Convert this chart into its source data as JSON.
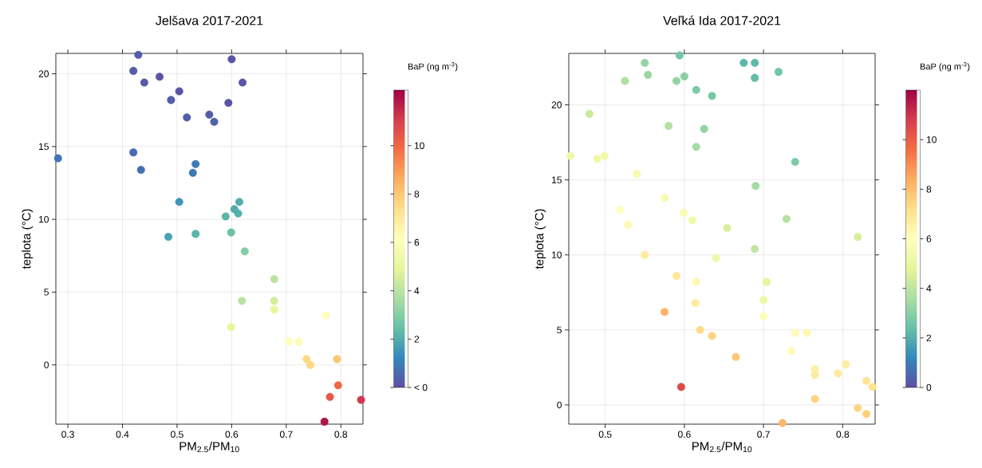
{
  "chart_data": [
    {
      "type": "scatter",
      "title": "Jelšava 2017-2021",
      "xlabel": "PM$_{2.5}$/PM$_{10}$",
      "ylabel": "teplota (°C)",
      "clabel": "BaP (ng m$^{-3}$)",
      "x": [
        0.429,
        0.42,
        0.44,
        0.468,
        0.504,
        0.489,
        0.6,
        0.62,
        0.594,
        0.518,
        0.559,
        0.568,
        0.282,
        0.42,
        0.434,
        0.534,
        0.529,
        0.504,
        0.614,
        0.589,
        0.612,
        0.605,
        0.484,
        0.534,
        0.599,
        0.624,
        0.678,
        0.619,
        0.678,
        0.678,
        0.773,
        0.599,
        0.705,
        0.723,
        0.737,
        0.744,
        0.793,
        0.795,
        0.78,
        0.837,
        0.77
      ],
      "values": [
        21.3,
        20.2,
        19.4,
        19.8,
        18.8,
        18.2,
        21.0,
        19.4,
        18.0,
        17.0,
        17.2,
        16.7,
        14.2,
        14.6,
        13.4,
        13.8,
        13.2,
        11.2,
        11.2,
        10.2,
        10.4,
        10.7,
        8.8,
        9.0,
        9.1,
        7.8,
        5.9,
        4.4,
        4.4,
        3.8,
        3.4,
        2.6,
        1.6,
        1.6,
        0.4,
        0.0,
        0.4,
        -1.4,
        -2.2,
        -2.4,
        -3.9
      ],
      "cvalues": [
        0.3,
        0.3,
        0.2,
        0.1,
        0.1,
        0.3,
        0.1,
        0.1,
        0.1,
        0.3,
        0.3,
        0.4,
        0.8,
        0.6,
        0.7,
        0.9,
        0.9,
        1.5,
        2.0,
        2.2,
        2.1,
        2.0,
        1.8,
        2.2,
        2.5,
        3.0,
        4.0,
        4.0,
        4.5,
        5.0,
        6.0,
        5.0,
        6.2,
        6.3,
        7.5,
        7.6,
        8.0,
        10.0,
        10.4,
        11.2,
        11.9
      ],
      "xlim": [
        0.278,
        0.8405
      ],
      "ylim": [
        -4.07,
        21.4
      ],
      "xticks": [
        0.3,
        0.4,
        0.5,
        0.6,
        0.7,
        0.8
      ],
      "yticks": [
        0,
        5,
        10,
        15,
        20
      ],
      "clim": [
        0,
        12.3
      ],
      "cticks": [
        {
          "value": 0,
          "label": "< 0"
        },
        2,
        4,
        6,
        8,
        10
      ],
      "grid": true,
      "marker": "circle"
    },
    {
      "type": "scatter",
      "title": "Veľká Ida 2017-2021",
      "xlabel": "PM$_{2.5}$/PM$_{10}$",
      "ylabel": "teplota (°C)",
      "clabel": "BaP (ng m$^{-3}$)",
      "x": [
        0.594,
        0.55,
        0.554,
        0.525,
        0.59,
        0.6,
        0.615,
        0.635,
        0.675,
        0.689,
        0.689,
        0.719,
        0.48,
        0.58,
        0.625,
        0.615,
        0.74,
        0.456,
        0.49,
        0.499,
        0.54,
        0.69,
        0.575,
        0.519,
        0.529,
        0.599,
        0.61,
        0.654,
        0.729,
        0.819,
        0.689,
        0.55,
        0.64,
        0.59,
        0.615,
        0.704,
        0.7,
        0.614,
        0.575,
        0.7,
        0.62,
        0.635,
        0.74,
        0.755,
        0.735,
        0.665,
        0.765,
        0.765,
        0.804,
        0.794,
        0.83,
        0.838,
        0.596,
        0.765,
        0.819,
        0.83,
        0.724
      ],
      "values": [
        23.3,
        22.8,
        22.0,
        21.6,
        21.6,
        21.9,
        21.0,
        20.6,
        22.8,
        22.8,
        21.8,
        22.2,
        19.4,
        18.6,
        18.4,
        17.2,
        16.2,
        16.6,
        16.4,
        16.6,
        15.4,
        14.6,
        13.8,
        13.0,
        12.0,
        12.8,
        12.3,
        11.8,
        12.4,
        11.2,
        10.4,
        10.0,
        9.8,
        8.6,
        8.2,
        8.2,
        7.0,
        6.8,
        6.2,
        5.9,
        5.0,
        4.6,
        4.8,
        4.8,
        3.6,
        3.2,
        2.4,
        2.0,
        2.7,
        2.1,
        1.6,
        1.2,
        1.2,
        0.4,
        -0.2,
        -0.6,
        -1.2
      ],
      "cvalues": [
        2.6,
        3.2,
        3.3,
        3.7,
        3.2,
        3.0,
        2.8,
        2.7,
        2.2,
        2.2,
        2.3,
        2.6,
        4.2,
        3.8,
        3.2,
        3.5,
        2.8,
        5.3,
        5.2,
        5.3,
        5.5,
        3.5,
        5.5,
        6.0,
        6.3,
        5.5,
        5.3,
        4.5,
        3.8,
        4.5,
        4.0,
        6.8,
        5.3,
        6.9,
        6.3,
        4.8,
        5.2,
        6.8,
        8.3,
        5.8,
        7.3,
        7.5,
        6.2,
        6.3,
        6.2,
        7.8,
        6.6,
        6.8,
        6.7,
        6.7,
        7.0,
        7.1,
        10.5,
        7.5,
        7.5,
        7.6,
        8.2
      ],
      "xlim": [
        0.454,
        0.841
      ],
      "ylim": [
        -1.28,
        23.43
      ],
      "xticks": [
        0.5,
        0.6,
        0.7,
        0.8
      ],
      "yticks": [
        0,
        5,
        10,
        15,
        20
      ],
      "clim": [
        0,
        12.0
      ],
      "cticks": [
        0,
        2,
        4,
        6,
        8,
        10
      ],
      "grid": true,
      "marker": "circle"
    }
  ]
}
